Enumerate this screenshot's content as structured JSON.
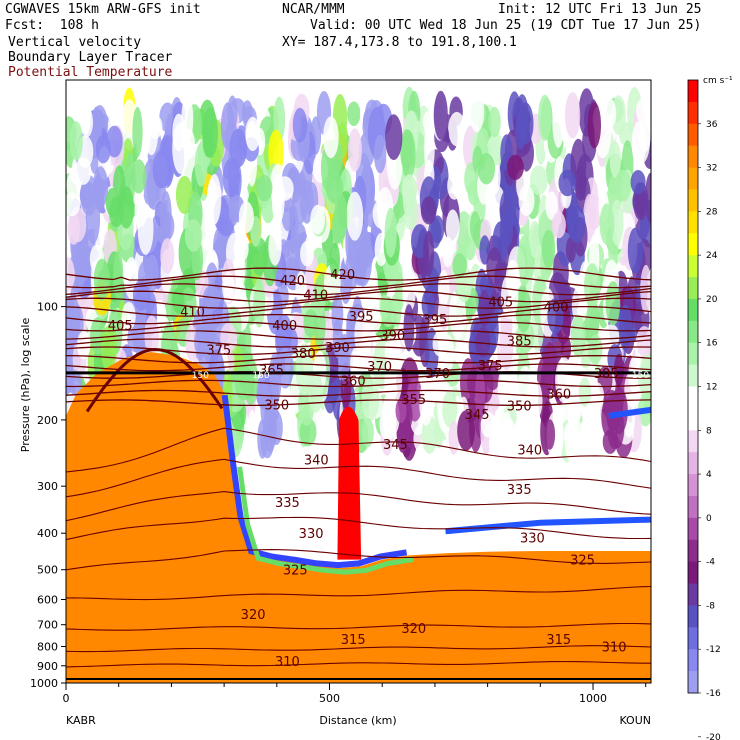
{
  "header": {
    "model": "CGWAVES 15km ARW-GFS init",
    "forecast": "Fcst:  108 h",
    "field1": "Vertical velocity",
    "field2": "Boundary Layer Tracer",
    "field3": "Potential Temperature",
    "org": "NCAR/MMM",
    "init": "Init: 12 UTC Fri 13 Jun 25",
    "valid": "Valid: 00 UTC Wed 18 Jun 25 (19 CDT Tue 17 Jun 25)",
    "xy": "XY= 187.4,173.8 to 191.8,100.1"
  },
  "colors": {
    "theta": "#6b0000",
    "field3_label": "#7a1010",
    "bl_tracer": "#ff8800"
  },
  "chart_data": {
    "type": "heatmap",
    "ylabel": "Pressure (hPa), log scale",
    "xlabel": "Distance (km)",
    "start_label": "KABR",
    "end_label": "KOUN",
    "x_ticks": [
      0,
      500,
      1000
    ],
    "xlim": [
      0,
      1110
    ],
    "y_ticks": [
      100,
      200,
      300,
      400,
      500,
      600,
      700,
      800,
      900,
      1000
    ],
    "ylim": [
      1000,
      25
    ],
    "y_scale": "log",
    "colorbar": {
      "units": "cm s⁻¹",
      "tick_labels": [
        36,
        32,
        28,
        24,
        20,
        16,
        12,
        8,
        4,
        0,
        -4,
        -8,
        -12,
        -16,
        -20
      ],
      "colors": [
        "#ff0000",
        "#ff2e00",
        "#ff5c00",
        "#ff8800",
        "#ffa400",
        "#ffc000",
        "#ffe000",
        "#ffff00",
        "#ccff33",
        "#99ee55",
        "#66dd66",
        "#88e888",
        "#aaf2aa",
        "#cdf8cd",
        "#ffffff",
        "#ffffff",
        "#f2d8f2",
        "#e4b4e4",
        "#d592d5",
        "#c070c0",
        "#a84aa8",
        "#8c2d8c",
        "#7a1a7a",
        "#6a3aa0",
        "#5a52c0",
        "#6e6ee0",
        "#8888f0",
        "#9e9ef0"
      ]
    },
    "theta_labels": [
      {
        "v": "420",
        "x": 430,
        "p": 85
      },
      {
        "v": "420",
        "x": 525,
        "p": 82
      },
      {
        "v": "410",
        "x": 474,
        "p": 93
      },
      {
        "v": "410",
        "x": 240,
        "p": 103
      },
      {
        "v": "405",
        "x": 103,
        "p": 112
      },
      {
        "v": "405",
        "x": 825,
        "p": 97
      },
      {
        "v": "400",
        "x": 415,
        "p": 112
      },
      {
        "v": "400",
        "x": 930,
        "p": 100
      },
      {
        "v": "395",
        "x": 560,
        "p": 106
      },
      {
        "v": "395",
        "x": 700,
        "p": 108
      },
      {
        "v": "390",
        "x": 620,
        "p": 119
      },
      {
        "v": "390",
        "x": 515,
        "p": 128
      },
      {
        "v": "385",
        "x": 860,
        "p": 123
      },
      {
        "v": "380",
        "x": 450,
        "p": 133
      },
      {
        "v": "375",
        "x": 290,
        "p": 130
      },
      {
        "v": "375",
        "x": 805,
        "p": 143
      },
      {
        "v": "370",
        "x": 595,
        "p": 144
      },
      {
        "v": "370",
        "x": 705,
        "p": 150
      },
      {
        "v": "365",
        "x": 390,
        "p": 147
      },
      {
        "v": "360",
        "x": 545,
        "p": 157
      },
      {
        "v": "360",
        "x": 935,
        "p": 170
      },
      {
        "v": "355",
        "x": 660,
        "p": 176
      },
      {
        "v": "350",
        "x": 400,
        "p": 182
      },
      {
        "v": "350",
        "x": 860,
        "p": 183
      },
      {
        "v": "345",
        "x": 780,
        "p": 193
      },
      {
        "v": "345",
        "x": 625,
        "p": 232
      },
      {
        "v": "340",
        "x": 475,
        "p": 255
      },
      {
        "v": "340",
        "x": 880,
        "p": 240
      },
      {
        "v": "335",
        "x": 420,
        "p": 330
      },
      {
        "v": "335",
        "x": 860,
        "p": 305
      },
      {
        "v": "330",
        "x": 465,
        "p": 400
      },
      {
        "v": "330",
        "x": 885,
        "p": 410
      },
      {
        "v": "325",
        "x": 435,
        "p": 500
      },
      {
        "v": "325",
        "x": 980,
        "p": 470
      },
      {
        "v": "320",
        "x": 355,
        "p": 655
      },
      {
        "v": "320",
        "x": 660,
        "p": 715
      },
      {
        "v": "315",
        "x": 545,
        "p": 765
      },
      {
        "v": "315",
        "x": 935,
        "p": 765
      },
      {
        "v": "310",
        "x": 420,
        "p": 875
      },
      {
        "v": "310",
        "x": 1040,
        "p": 800
      },
      {
        "v": "305",
        "x": 1025,
        "p": 150
      },
      {
        "v": "150",
        "x": 255,
        "p": 150
      },
      {
        "v": "150",
        "x": 370,
        "p": 150
      },
      {
        "v": "150",
        "x": 1090,
        "p": 150
      }
    ]
  }
}
